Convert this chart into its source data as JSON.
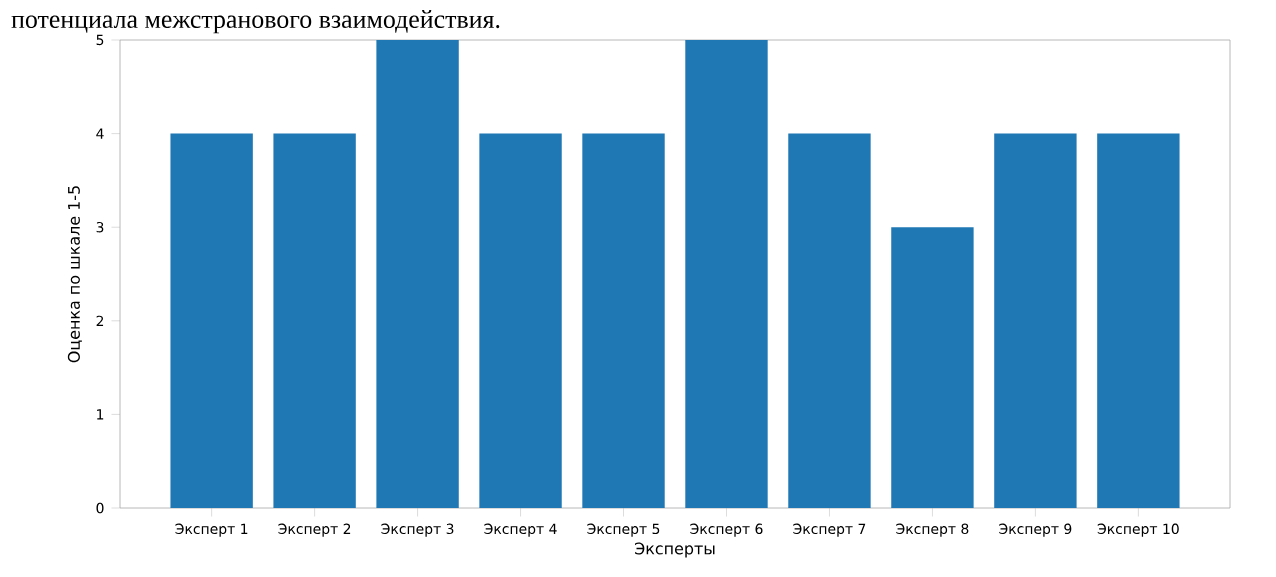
{
  "chart_data": {
    "type": "bar",
    "xlabel": "Эксперты",
    "ylabel": "Оценка по шкале 1-5",
    "annotations": [
      "потенциала межстранового взаимодействия."
    ],
    "categories": [
      "Эксперт 1",
      "Эксперт 2",
      "Эксперт 3",
      "Эксперт 4",
      "Эксперт 5",
      "Эксперт 6",
      "Эксперт 7",
      "Эксперт 8",
      "Эксперт 9",
      "Эксперт 10"
    ],
    "values": [
      4,
      4,
      5,
      4,
      4,
      5,
      4,
      3,
      4,
      4
    ],
    "color": "#1f77b4",
    "ylim": [
      0,
      5
    ],
    "yticks": [
      0,
      1,
      2,
      3,
      4,
      5
    ]
  }
}
